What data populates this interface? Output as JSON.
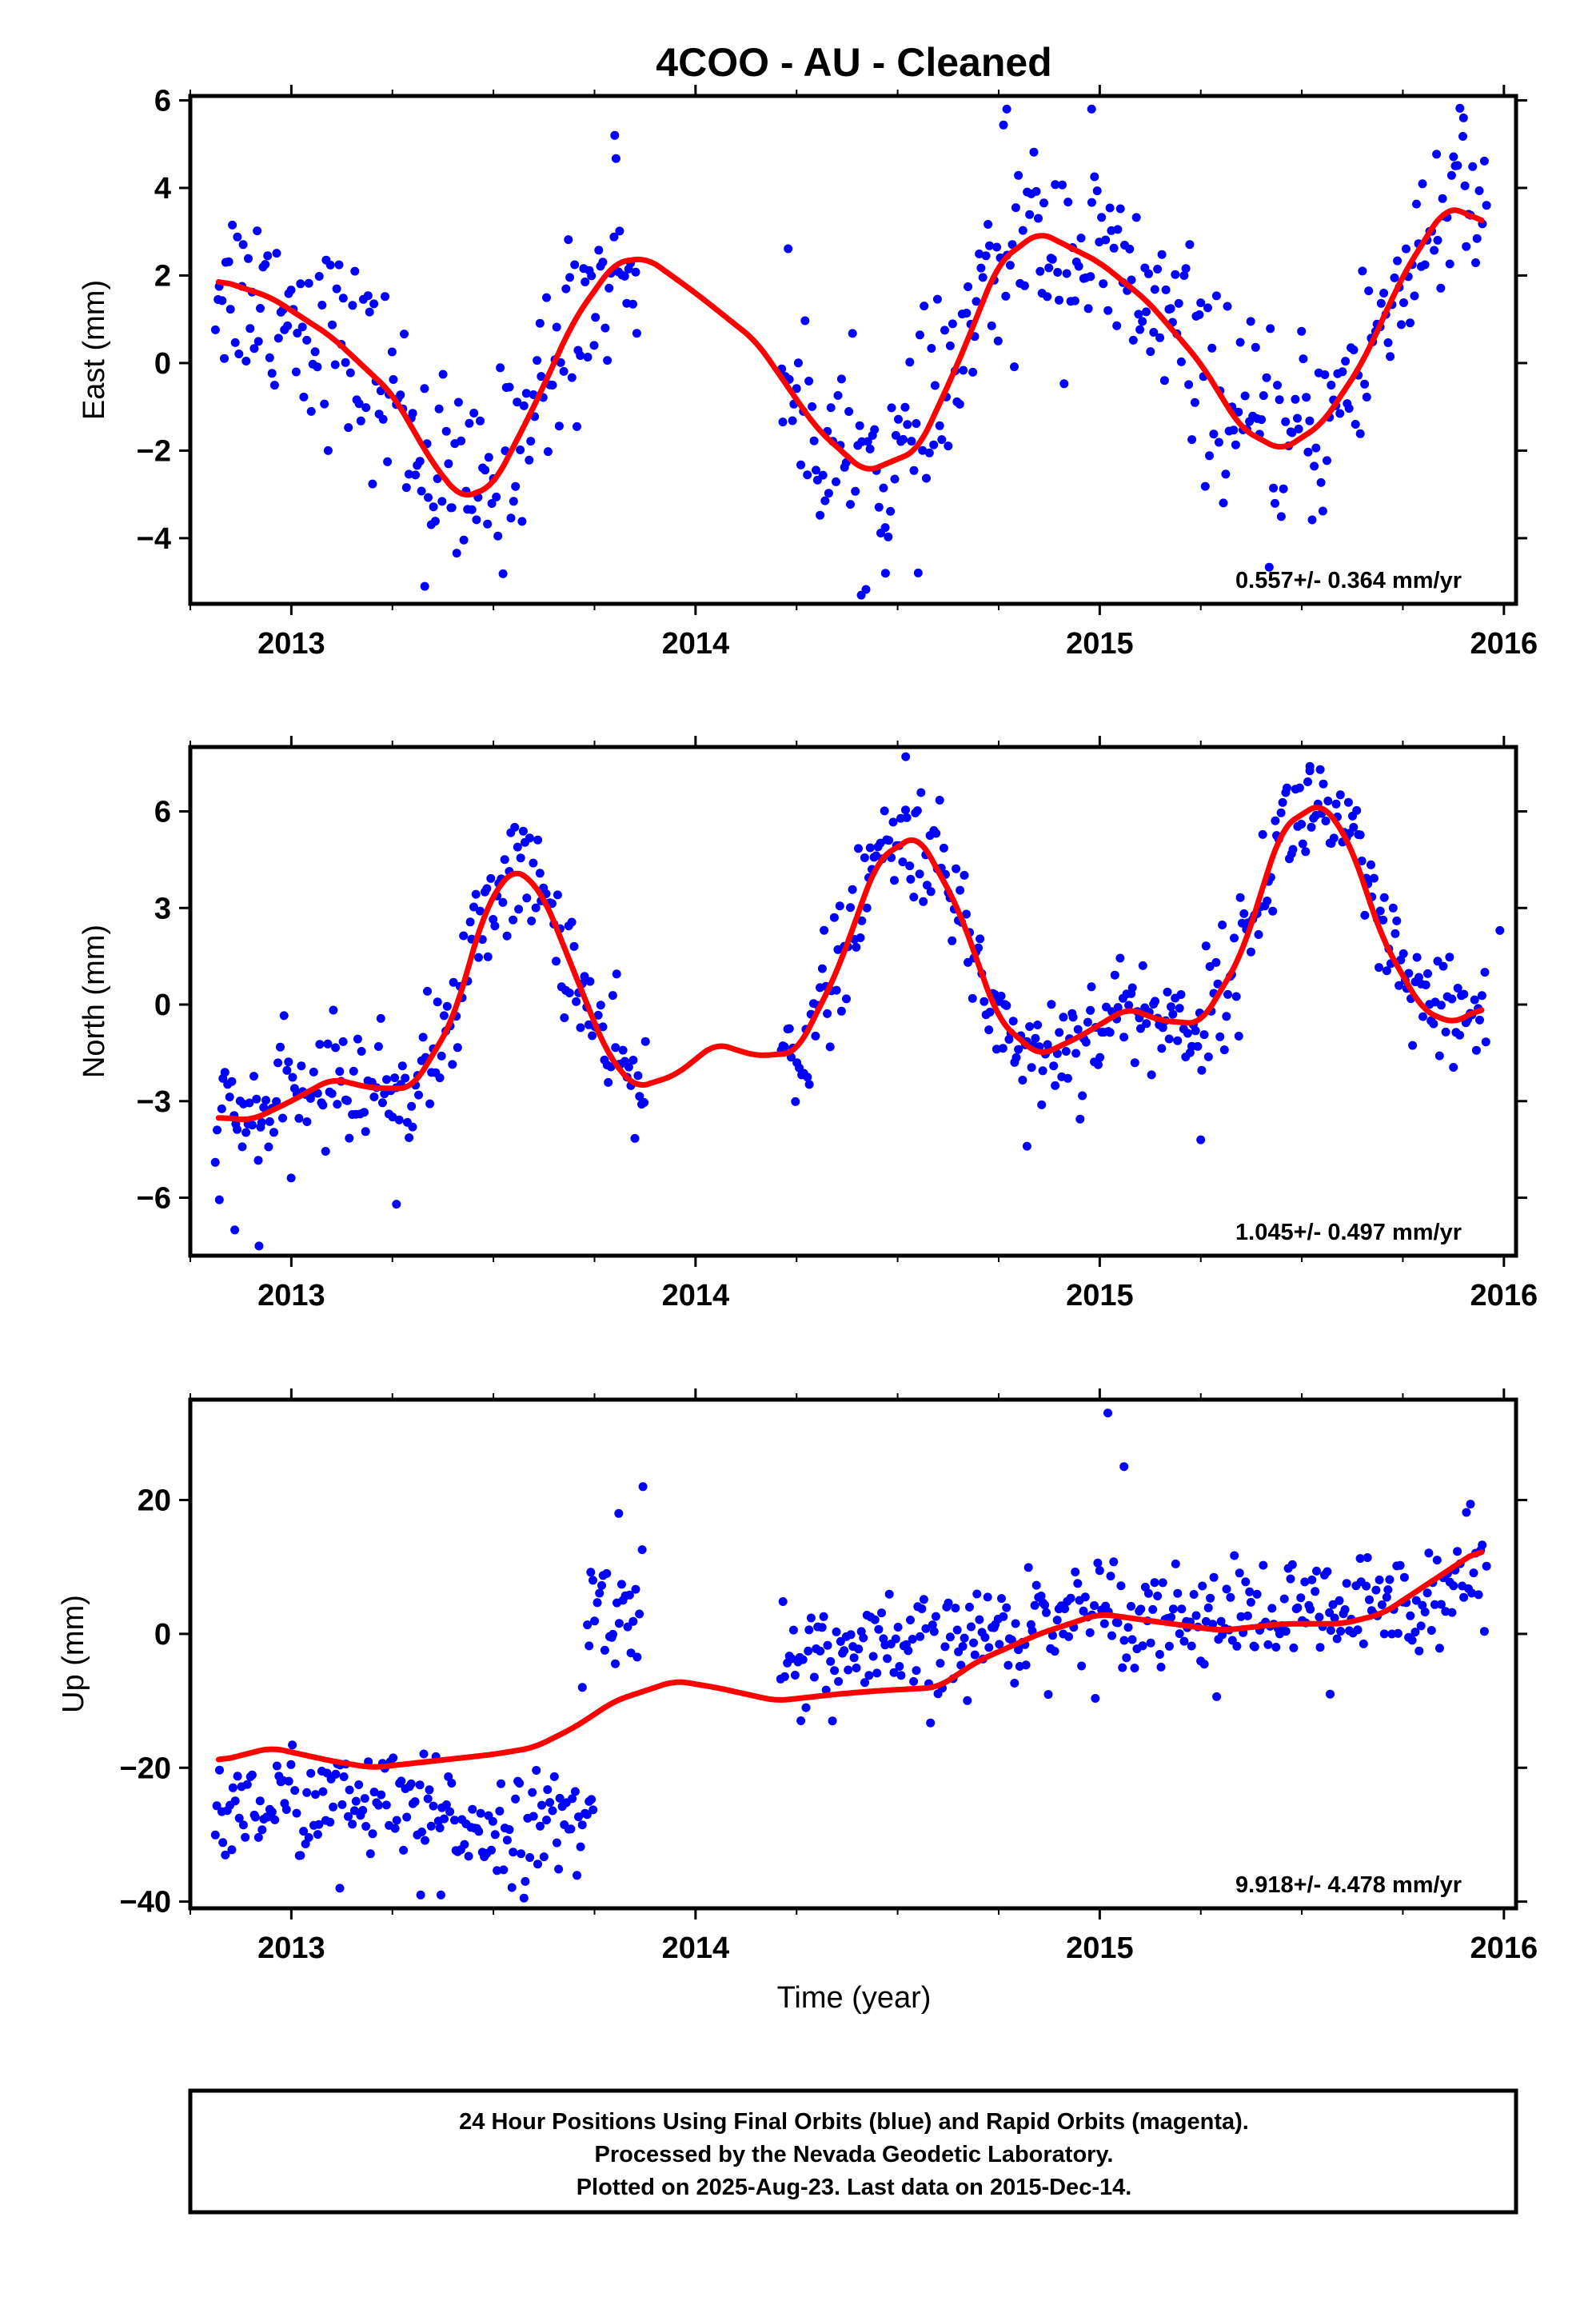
{
  "title": "4COO  - AU - Cleaned",
  "xlabel": "Time (year)",
  "footer": [
    "24 Hour Positions Using Final Orbits (blue) and Rapid Orbits (magenta).",
    "Processed by the Nevada Geodetic Laboratory.",
    "Plotted on 2025-Aug-23. Last data on 2015-Dec-14."
  ],
  "colors": {
    "points": "#0000ff",
    "fit": "#ff0000",
    "axes": "#000000"
  },
  "chart_data": [
    {
      "type": "scatter",
      "component": "east",
      "ylabel": "East (mm)",
      "rate_label": "0.557+/- 0.364 mm/yr",
      "xlim": [
        2012.75,
        2016.03
      ],
      "ylim": [
        -5.5,
        6.1
      ],
      "x_ticks": [
        2013,
        2014,
        2015,
        2016
      ],
      "y_ticks": [
        -4,
        -2,
        0,
        2,
        4,
        6
      ],
      "grid": false,
      "fit_curve": [
        [
          2012.82,
          1.9
        ],
        [
          2012.95,
          1.5
        ],
        [
          2013.1,
          0.6
        ],
        [
          2013.25,
          -0.7
        ],
        [
          2013.35,
          -2.3
        ],
        [
          2013.42,
          -3.1
        ],
        [
          2013.5,
          -2.8
        ],
        [
          2013.6,
          -1.0
        ],
        [
          2013.7,
          1.0
        ],
        [
          2013.8,
          2.3
        ],
        [
          2013.88,
          2.4
        ],
        [
          2014.0,
          1.6
        ],
        [
          2014.15,
          0.5
        ],
        [
          2014.3,
          -1.5
        ],
        [
          2014.42,
          -2.5
        ],
        [
          2014.55,
          -2.0
        ],
        [
          2014.65,
          0.0
        ],
        [
          2014.75,
          2.3
        ],
        [
          2014.85,
          3.0
        ],
        [
          2015.0,
          2.3
        ],
        [
          2015.12,
          1.4
        ],
        [
          2015.25,
          0.0
        ],
        [
          2015.35,
          -1.5
        ],
        [
          2015.45,
          -2.0
        ],
        [
          2015.55,
          -1.4
        ],
        [
          2015.65,
          0.0
        ],
        [
          2015.75,
          2.0
        ],
        [
          2015.85,
          3.5
        ],
        [
          2015.9,
          3.5
        ],
        [
          2015.95,
          3.1
        ]
      ],
      "series": [
        {
          "segments": [
            [
              2012.81,
              2013.86,
              "e1"
            ],
            [
              2014.21,
              2015.96,
              "e2"
            ]
          ],
          "amp": 2.9,
          "phase": 2.1,
          "trend": 0.557,
          "noise": 1.1,
          "n": 520
        }
      ],
      "outliers": [
        [
          2014.41,
          -5.3
        ],
        [
          2014.47,
          -4.8
        ],
        [
          2013.33,
          -5.1
        ],
        [
          2014.77,
          5.8
        ],
        [
          2014.98,
          5.8
        ],
        [
          2015.9,
          5.6
        ],
        [
          2013.8,
          5.2
        ]
      ]
    },
    {
      "type": "scatter",
      "component": "north",
      "ylabel": "North (mm)",
      "rate_label": "1.045+/- 0.497 mm/yr",
      "xlim": [
        2012.75,
        2016.03
      ],
      "ylim": [
        -7.8,
        8.0
      ],
      "x_ticks": [
        2013,
        2014,
        2015,
        2016
      ],
      "y_ticks": [
        -6,
        -3,
        0,
        3,
        6
      ],
      "grid": false,
      "fit_curve": [
        [
          2012.82,
          -3.5
        ],
        [
          2012.9,
          -3.6
        ],
        [
          2013.0,
          -3.0
        ],
        [
          2013.1,
          -2.3
        ],
        [
          2013.2,
          -2.6
        ],
        [
          2013.3,
          -2.6
        ],
        [
          2013.4,
          -0.5
        ],
        [
          2013.48,
          3.0
        ],
        [
          2013.55,
          4.3
        ],
        [
          2013.62,
          3.5
        ],
        [
          2013.7,
          1.0
        ],
        [
          2013.78,
          -1.5
        ],
        [
          2013.85,
          -2.6
        ],
        [
          2013.95,
          -2.2
        ],
        [
          2014.05,
          -1.2
        ],
        [
          2014.15,
          -1.6
        ],
        [
          2014.25,
          -1.5
        ],
        [
          2014.35,
          1.0
        ],
        [
          2014.45,
          4.5
        ],
        [
          2014.55,
          5.3
        ],
        [
          2014.65,
          3.0
        ],
        [
          2014.75,
          -0.5
        ],
        [
          2014.85,
          -1.6
        ],
        [
          2014.95,
          -1.0
        ],
        [
          2015.07,
          -0.1
        ],
        [
          2015.15,
          -0.5
        ],
        [
          2015.25,
          -0.6
        ],
        [
          2015.35,
          1.5
        ],
        [
          2015.45,
          5.5
        ],
        [
          2015.55,
          6.3
        ],
        [
          2015.62,
          5.0
        ],
        [
          2015.7,
          2.0
        ],
        [
          2015.8,
          -0.2
        ],
        [
          2015.88,
          -0.6
        ],
        [
          2015.95,
          0.0
        ]
      ],
      "series": [
        {
          "segments": [
            [
              2012.81,
              2013.88,
              "n1"
            ],
            [
              2014.21,
              2015.96,
              "n2"
            ]
          ],
          "amp": 3.0,
          "phase": 1.6,
          "trend": 1.045,
          "noise": 0.9,
          "n": 560
        }
      ],
      "outliers": [
        [
          2012.92,
          -7.5
        ],
        [
          2012.86,
          -7.0
        ],
        [
          2013.26,
          -6.2
        ],
        [
          2014.52,
          7.7
        ],
        [
          2015.52,
          7.4
        ],
        [
          2015.99,
          2.3
        ],
        [
          2015.25,
          -4.2
        ],
        [
          2014.82,
          -4.4
        ]
      ]
    },
    {
      "type": "scatter",
      "component": "up",
      "ylabel": "Up (mm)",
      "rate_label": "9.918+/- 4.478 mm/yr",
      "xlim": [
        2012.75,
        2016.03
      ],
      "ylim": [
        -41,
        35
      ],
      "x_ticks": [
        2013,
        2014,
        2015,
        2016
      ],
      "y_ticks": [
        -40,
        -20,
        0,
        20
      ],
      "grid": false,
      "fit_curve": [
        [
          2012.82,
          -19
        ],
        [
          2012.95,
          -17
        ],
        [
          2013.1,
          -19
        ],
        [
          2013.2,
          -20
        ],
        [
          2013.35,
          -19
        ],
        [
          2013.5,
          -18
        ],
        [
          2013.6,
          -17
        ],
        [
          2013.7,
          -14
        ],
        [
          2013.8,
          -10
        ],
        [
          2013.95,
          -7
        ],
        [
          2014.05,
          -8
        ],
        [
          2014.2,
          -10
        ],
        [
          2014.35,
          -9
        ],
        [
          2014.45,
          -8.5
        ],
        [
          2014.6,
          -8
        ],
        [
          2014.7,
          -4
        ],
        [
          2014.85,
          0
        ],
        [
          2015.0,
          3
        ],
        [
          2015.12,
          2
        ],
        [
          2015.3,
          0.5
        ],
        [
          2015.45,
          1.5
        ],
        [
          2015.6,
          1.5
        ],
        [
          2015.7,
          3
        ],
        [
          2015.85,
          9
        ],
        [
          2015.95,
          13
        ]
      ],
      "series": [
        {
          "segments": [
            [
              2012.81,
              2013.75,
              "u1"
            ],
            [
              2013.73,
              2013.87,
              "u2"
            ],
            [
              2014.21,
              2015.96,
              "u3"
            ]
          ],
          "amp": 0,
          "phase": 0,
          "trend": 9.918,
          "noise": 4.0,
          "n": 560
        }
      ],
      "outliers": [
        [
          2015.02,
          33
        ],
        [
          2015.06,
          25
        ],
        [
          2013.87,
          22
        ],
        [
          2013.81,
          18
        ],
        [
          2013.72,
          -8
        ],
        [
          2015.57,
          -9
        ],
        [
          2013.12,
          -38
        ],
        [
          2013.32,
          -39
        ],
        [
          2013.37,
          -39
        ]
      ]
    }
  ]
}
